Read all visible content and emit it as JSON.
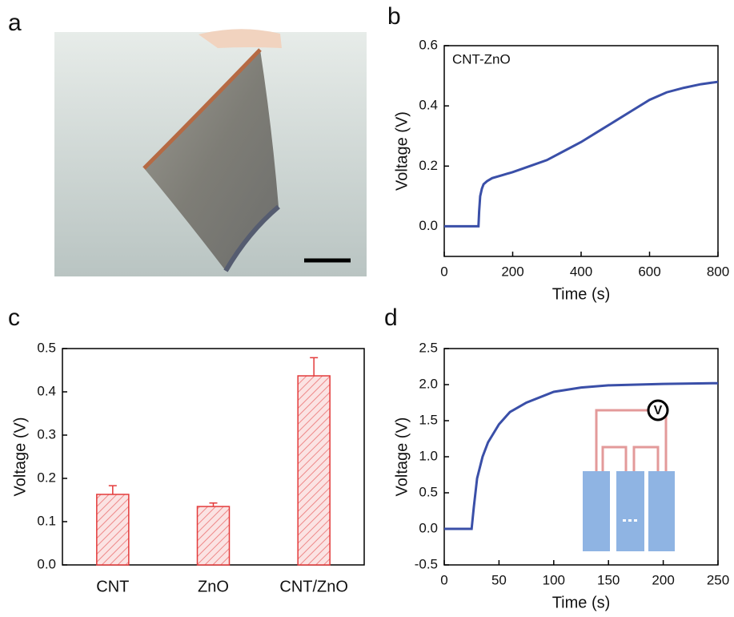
{
  "panel_labels": [
    "a",
    "b",
    "c",
    "d"
  ],
  "chart_data": [
    {
      "type": "line",
      "annotation": "CNT-ZnO",
      "xlabel": "Time (s)",
      "ylabel": "Voltage (V)",
      "color": "#3a4fa8",
      "x": [
        0,
        100,
        102,
        105,
        110,
        115,
        125,
        140,
        170,
        200,
        250,
        300,
        350,
        400,
        450,
        500,
        550,
        600,
        650,
        700,
        750,
        800
      ],
      "values": [
        0,
        0,
        0.05,
        0.1,
        0.125,
        0.14,
        0.15,
        0.16,
        0.17,
        0.18,
        0.2,
        0.22,
        0.25,
        0.28,
        0.315,
        0.35,
        0.385,
        0.42,
        0.445,
        0.46,
        0.472,
        0.48
      ],
      "xlim": [
        0,
        800
      ],
      "xticks": [
        0,
        200,
        400,
        600,
        800
      ],
      "ylim": [
        -0.1,
        0.6
      ],
      "yticks": [
        {
          "value": 0,
          "label": "0.0"
        },
        0.2,
        0.4,
        0.6
      ]
    },
    {
      "type": "bar",
      "ylabel": "Voltage (V)",
      "color": "#e33b3b",
      "categories": [
        "CNT",
        "ZnO",
        "CNT/ZnO"
      ],
      "values": [
        0.163,
        0.135,
        0.437
      ],
      "errors": [
        0.02,
        0.008,
        0.042
      ],
      "ylim": [
        0,
        0.5
      ],
      "yticks": [
        {
          "value": 0,
          "label": "0.0"
        },
        0.1,
        0.2,
        0.3,
        0.4,
        0.5
      ]
    },
    {
      "type": "line",
      "xlabel": "Time (s)",
      "ylabel": "Voltage (V)",
      "color": "#3a4fa8",
      "inset_label": "V",
      "x": [
        0,
        25,
        26,
        27,
        30,
        35,
        40,
        50,
        60,
        75,
        100,
        125,
        150,
        200,
        250
      ],
      "values": [
        0,
        0,
        0.15,
        0.3,
        0.7,
        1.0,
        1.2,
        1.45,
        1.62,
        1.75,
        1.9,
        1.96,
        1.99,
        2.01,
        2.02
      ],
      "xlim": [
        0,
        250
      ],
      "xticks": [
        0,
        50,
        100,
        150,
        200,
        250
      ],
      "ylim": [
        -0.5,
        2.5
      ],
      "yticks": [
        -0.5,
        {
          "value": 0,
          "label": "0.0"
        },
        0.5,
        {
          "value": 1,
          "label": "1.0"
        },
        1.5,
        {
          "value": 2,
          "label": "2.0"
        },
        2.5
      ]
    }
  ]
}
